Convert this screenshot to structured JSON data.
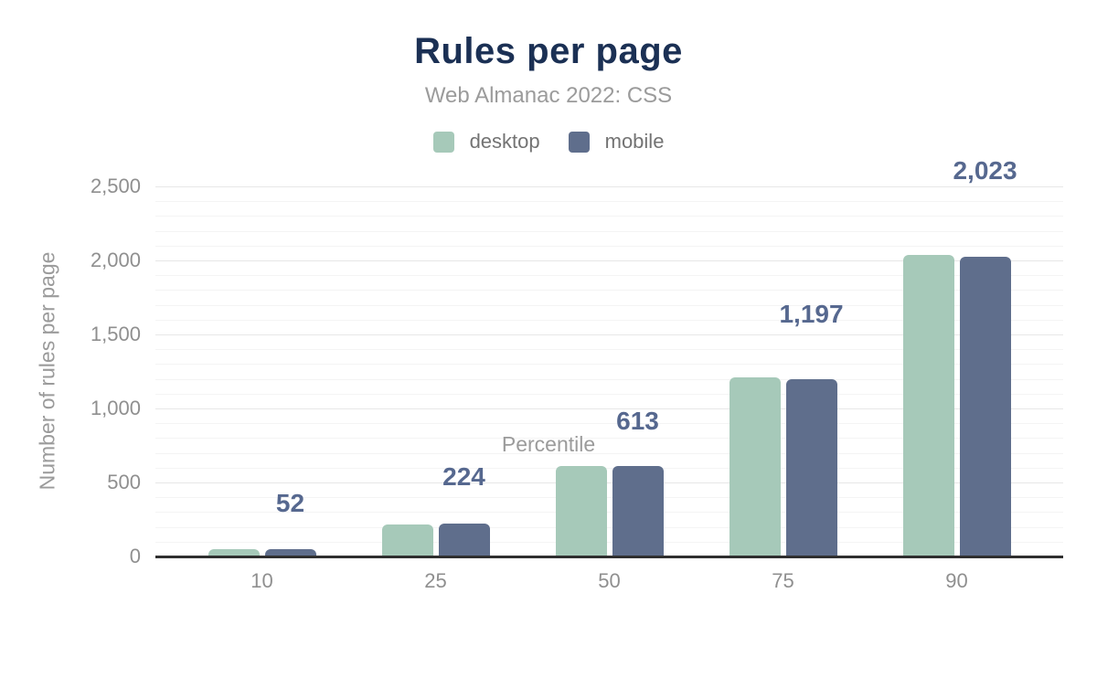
{
  "chart_data": {
    "type": "bar",
    "title": "Rules per page",
    "subtitle": "Web Almanac 2022: CSS",
    "xlabel": "Percentile",
    "ylabel": "Number of rules per page",
    "categories": [
      "10",
      "25",
      "50",
      "75",
      "90"
    ],
    "series": [
      {
        "name": "desktop",
        "color": "#a6c9b9",
        "values": [
          50,
          215,
          611,
          1210,
          2040
        ]
      },
      {
        "name": "mobile",
        "color": "#5f6e8c",
        "values": [
          52,
          224,
          613,
          1197,
          2023
        ]
      }
    ],
    "data_labels": [
      "52",
      "224",
      "613",
      "1,197",
      "2,023"
    ],
    "data_labels_series": "mobile",
    "yticks": [
      "0",
      "500",
      "1,000",
      "1,500",
      "2,000",
      "2,500"
    ],
    "ylim": [
      0,
      2500
    ],
    "major_grid_interval": 500,
    "minor_grid_interval": 100,
    "grid": true,
    "legend_position": "top",
    "colors": {
      "title": "#1b3054",
      "subtitle": "#9b9b9b",
      "axis_text": "#8f8f8f",
      "data_label": "#56688f",
      "baseline": "#2f2f2f",
      "major_grid": "#e7e7e7",
      "minor_grid": "#f4f4f4",
      "background": "#ffffff"
    }
  }
}
